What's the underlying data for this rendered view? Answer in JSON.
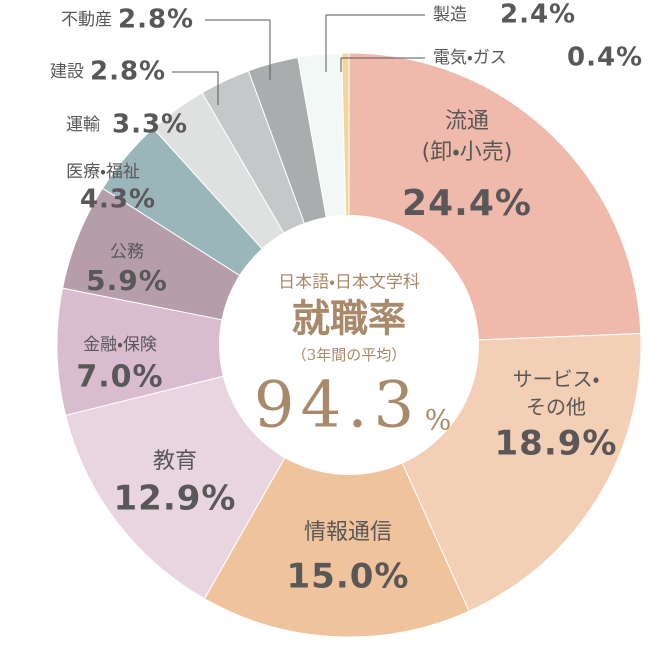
{
  "chart_data": {
    "type": "donut",
    "categories": [
      "流通\n(卸・小売)",
      "サービス・\nその他",
      "情報通信",
      "教育",
      "金融・保険",
      "公務",
      "医療・福祉",
      "運輸",
      "建設",
      "不動産",
      "製造",
      "電気・ガス"
    ],
    "values": [
      24.4,
      18.9,
      15,
      12.9,
      7,
      5.9,
      4.3,
      3.3,
      2.8,
      2.8,
      2.4,
      0.4
    ],
    "value_labels": [
      "24.4%",
      "18.9%",
      "15.0%",
      "12.9%",
      "7.0%",
      "5.9%",
      "4.3%",
      "3.3%",
      "2.8%",
      "2.8%",
      "2.4%",
      "0.4%"
    ],
    "colors": [
      "#efb9ab",
      "#f3cfb6",
      "#efc39c",
      "#e8d5e0",
      "#d9bccd",
      "#b59daa",
      "#9ab6bb",
      "#dfe1e1",
      "#c5c8c8",
      "#a9adad",
      "#f2f8f5",
      "#f3d49b"
    ],
    "center": {
      "heading": "日本語・日本文学科",
      "title": "就職率",
      "subtitle": "（3年間の平均）",
      "value": 94.3,
      "unit": "%"
    }
  }
}
